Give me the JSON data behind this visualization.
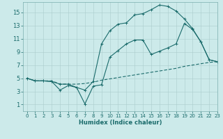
{
  "xlabel": "Humidex (Indice chaleur)",
  "ylabel": "",
  "bg_color": "#cceaea",
  "line_color": "#1a6b6b",
  "xlim": [
    -0.5,
    23
  ],
  "ylim": [
    0,
    16.5
  ],
  "xticks": [
    0,
    1,
    2,
    3,
    4,
    5,
    6,
    7,
    8,
    9,
    10,
    11,
    12,
    13,
    14,
    15,
    16,
    17,
    18,
    19,
    20,
    21,
    22,
    23
  ],
  "yticks": [
    1,
    3,
    5,
    7,
    9,
    11,
    13,
    15
  ],
  "line1_x": [
    0,
    1,
    2,
    3,
    4,
    5,
    6,
    7,
    8,
    9,
    10,
    11,
    12,
    13,
    14,
    15,
    16,
    17,
    18,
    19,
    20,
    21,
    22,
    23
  ],
  "line1_y": [
    5.0,
    4.6,
    4.6,
    4.6,
    4.1,
    4.1,
    4.1,
    4.2,
    4.4,
    4.7,
    4.9,
    5.1,
    5.3,
    5.5,
    5.7,
    5.9,
    6.1,
    6.3,
    6.5,
    6.8,
    7.0,
    7.2,
    7.4,
    7.5
  ],
  "line2_x": [
    0,
    1,
    2,
    3,
    4,
    5,
    6,
    7,
    8,
    9,
    10,
    11,
    12,
    13,
    14,
    15,
    16,
    17,
    18,
    19,
    20,
    21,
    22,
    23
  ],
  "line2_y": [
    5.0,
    4.6,
    4.6,
    4.5,
    3.2,
    3.9,
    3.6,
    1.1,
    3.8,
    4.0,
    8.2,
    9.2,
    10.2,
    10.8,
    10.8,
    8.6,
    9.1,
    9.6,
    10.2,
    13.3,
    12.4,
    10.5,
    7.8,
    7.5
  ],
  "line3_x": [
    0,
    1,
    2,
    3,
    4,
    5,
    6,
    7,
    8,
    9,
    10,
    11,
    12,
    13,
    14,
    15,
    16,
    17,
    18,
    19,
    20,
    21,
    22,
    23
  ],
  "line3_y": [
    5.0,
    4.6,
    4.6,
    4.5,
    4.1,
    4.1,
    3.6,
    3.2,
    4.5,
    10.2,
    12.2,
    13.2,
    13.4,
    14.6,
    14.8,
    15.4,
    16.1,
    15.9,
    15.2,
    14.0,
    12.5,
    10.5,
    7.8,
    7.5
  ],
  "xlabel_fontsize": 6,
  "tick_fontsize_x": 5,
  "tick_fontsize_y": 6,
  "linewidth": 0.8,
  "marker_size": 3,
  "grid_color": "#aacccc"
}
